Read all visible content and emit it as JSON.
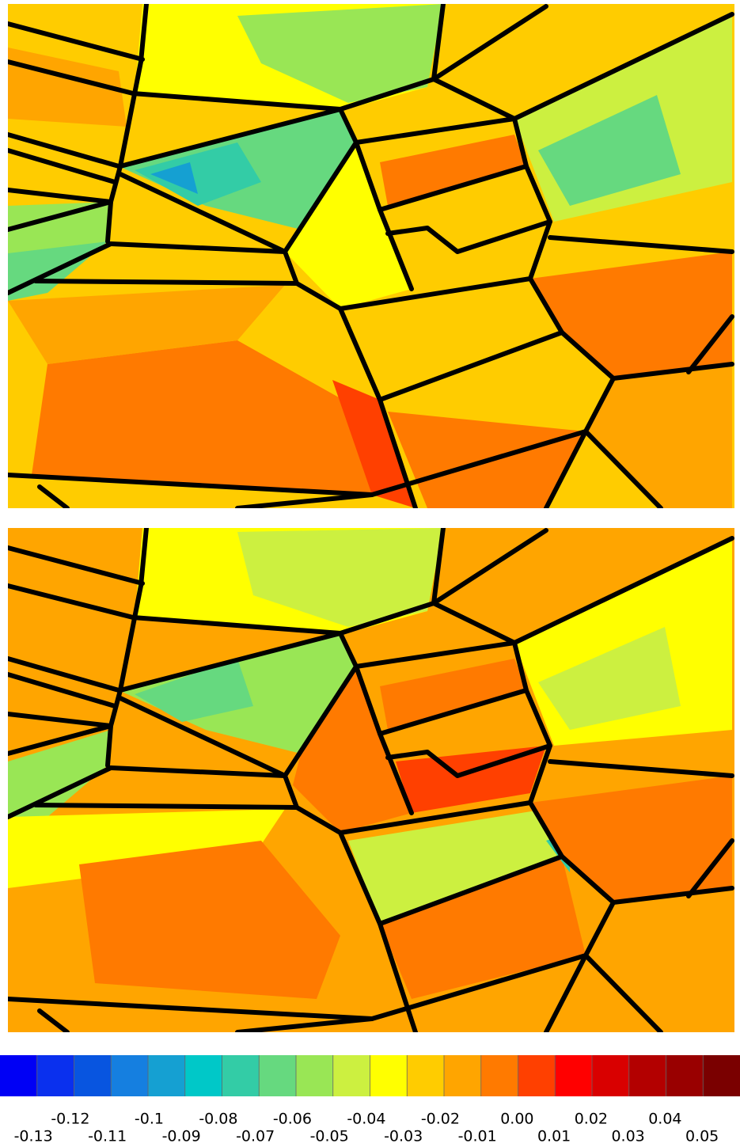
{
  "chart_data": {
    "type": "colorbar",
    "colors": [
      "#0000f5",
      "#0a30ee",
      "#0855e0",
      "#157fe0",
      "#15a0d2",
      "#00c8c8",
      "#33cca6",
      "#66d97f",
      "#99e655",
      "#ccf040",
      "#ffff00",
      "#ffcc00",
      "#ffa500",
      "#ff7a00",
      "#ff4000",
      "#ff0000",
      "#d90000",
      "#b30000",
      "#990000",
      "#7a0000"
    ],
    "xlim": [
      -0.14,
      0.06
    ],
    "xticks": [
      -0.13,
      -0.12,
      -0.11,
      -0.1,
      -0.09,
      -0.08,
      -0.07,
      -0.06,
      -0.05,
      -0.04,
      -0.03,
      -0.02,
      -0.01,
      {
        "value": 0,
        "label": "0.00"
      },
      0.01,
      0.02,
      0.03,
      0.04,
      0.05
    ]
  }
}
